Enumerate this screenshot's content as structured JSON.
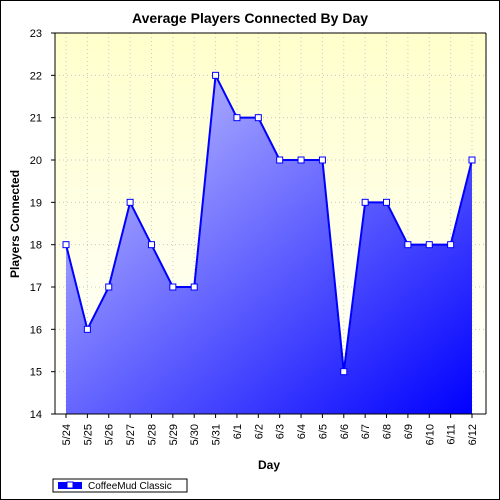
{
  "colors": {
    "plot_bg_top": "#ffffcc",
    "plot_bg_bottom": "#ffffff",
    "line": "#0000ff",
    "fill_light": "#ccccff",
    "fill_dark": "#0000ff",
    "marker_fill": "#ffffff",
    "grid": "#c8c8c8"
  },
  "chart_data": {
    "type": "area",
    "title": "Average Players Connected By Day",
    "xlabel": "Day",
    "ylabel": "Players Connected",
    "ylim": [
      14,
      23
    ],
    "yticks": [
      14,
      15,
      16,
      17,
      18,
      19,
      20,
      21,
      22,
      23
    ],
    "grid": true,
    "legend": "bottom-left",
    "categories": [
      "5/24",
      "5/25",
      "5/26",
      "5/27",
      "5/28",
      "5/29",
      "5/30",
      "5/31",
      "6/1",
      "6/2",
      "6/3",
      "6/4",
      "6/5",
      "6/6",
      "6/7",
      "6/8",
      "6/9",
      "6/10",
      "6/11",
      "6/12"
    ],
    "series": [
      {
        "name": "CoffeeMud Classic",
        "values": [
          18,
          16,
          17,
          19,
          18,
          17,
          17,
          22,
          21,
          21,
          20,
          20,
          20,
          15,
          19,
          19,
          18,
          18,
          18,
          20
        ]
      }
    ]
  }
}
